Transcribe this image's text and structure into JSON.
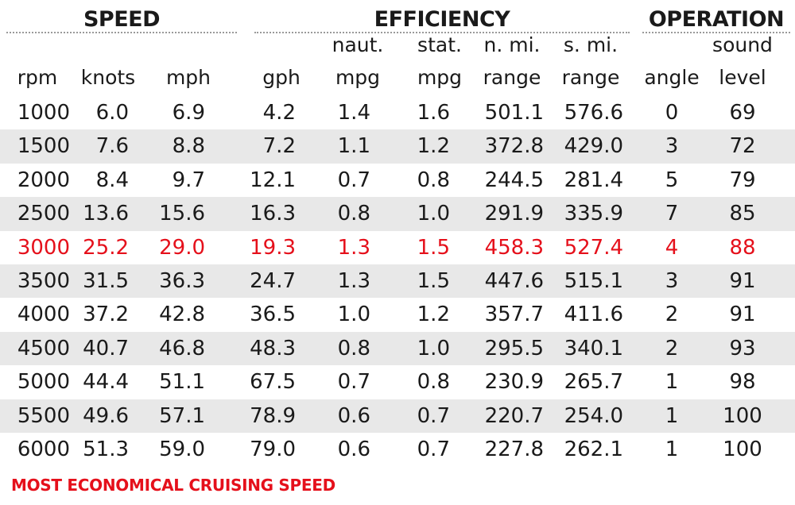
{
  "groups": {
    "speed": "SPEED",
    "efficiency": "EFFICIENCY",
    "operation": "OPERATION"
  },
  "headers": {
    "rpm": [
      "",
      "rpm"
    ],
    "knots": [
      "",
      "knots"
    ],
    "mph": [
      "",
      "mph"
    ],
    "gph": [
      "",
      "gph"
    ],
    "naut_mpg": [
      "naut.",
      "mpg"
    ],
    "stat_mpg": [
      "stat.",
      "mpg"
    ],
    "n_mi_range": [
      "n. mi.",
      "range"
    ],
    "s_mi_range": [
      "s. mi.",
      "range"
    ],
    "angle": [
      "",
      "angle"
    ],
    "sound_level": [
      "sound",
      "level"
    ]
  },
  "rows": [
    [
      "1000",
      "6.0",
      "6.9",
      "4.2",
      "1.4",
      "1.6",
      "501.1",
      "576.6",
      "0",
      "69"
    ],
    [
      "1500",
      "7.6",
      "8.8",
      "7.2",
      "1.1",
      "1.2",
      "372.8",
      "429.0",
      "3",
      "72"
    ],
    [
      "2000",
      "8.4",
      "9.7",
      "12.1",
      "0.7",
      "0.8",
      "244.5",
      "281.4",
      "5",
      "79"
    ],
    [
      "2500",
      "13.6",
      "15.6",
      "16.3",
      "0.8",
      "1.0",
      "291.9",
      "335.9",
      "7",
      "85"
    ],
    [
      "3000",
      "25.2",
      "29.0",
      "19.3",
      "1.3",
      "1.5",
      "458.3",
      "527.4",
      "4",
      "88"
    ],
    [
      "3500",
      "31.5",
      "36.3",
      "24.7",
      "1.3",
      "1.5",
      "447.6",
      "515.1",
      "3",
      "91"
    ],
    [
      "4000",
      "37.2",
      "42.8",
      "36.5",
      "1.0",
      "1.2",
      "357.7",
      "411.6",
      "2",
      "91"
    ],
    [
      "4500",
      "40.7",
      "46.8",
      "48.3",
      "0.8",
      "1.0",
      "295.5",
      "340.1",
      "2",
      "93"
    ],
    [
      "5000",
      "44.4",
      "51.1",
      "67.5",
      "0.7",
      "0.8",
      "230.9",
      "265.7",
      "1",
      "98"
    ],
    [
      "5500",
      "49.6",
      "57.1",
      "78.9",
      "0.6",
      "0.7",
      "220.7",
      "254.0",
      "1",
      "100"
    ],
    [
      "6000",
      "51.3",
      "59.0",
      "79.0",
      "0.6",
      "0.7",
      "227.8",
      "262.1",
      "1",
      "100"
    ]
  ],
  "highlight_row": 4,
  "footnote": "MOST ECONOMICAL CRUISING SPEED",
  "colors": {
    "highlight": "#e5101b",
    "row_shade": "#e8e8e8",
    "text": "#1a1a1a"
  }
}
